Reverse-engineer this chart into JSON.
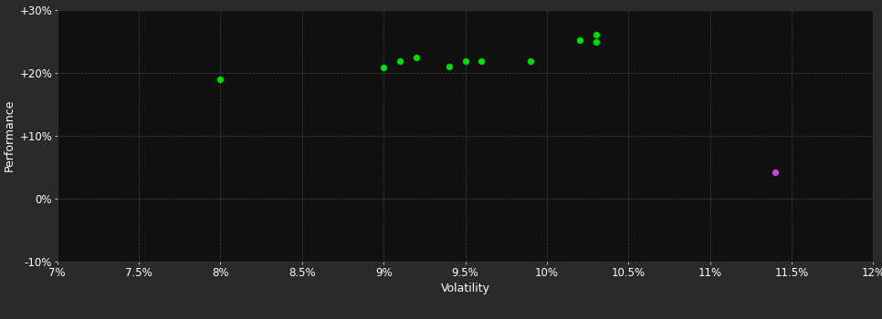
{
  "background_color": "#2a2a2a",
  "plot_bg_color": "#111111",
  "grid_color": "#444444",
  "grid_style": "--",
  "xlabel": "Volatility",
  "ylabel": "Performance",
  "xlim": [
    0.07,
    0.12
  ],
  "ylim": [
    -0.1,
    0.3
  ],
  "xticks": [
    0.07,
    0.075,
    0.08,
    0.085,
    0.09,
    0.095,
    0.1,
    0.105,
    0.11,
    0.115,
    0.12
  ],
  "yticks": [
    -0.1,
    0.0,
    0.1,
    0.2,
    0.3
  ],
  "ytick_labels": [
    "-10%",
    "0%",
    "+10%",
    "+20%",
    "+30%"
  ],
  "xtick_labels": [
    "7%",
    "7.5%",
    "8%",
    "8.5%",
    "9%",
    "9.5%",
    "10%",
    "10.5%",
    "11%",
    "11.5%",
    "12%"
  ],
  "green_points": [
    [
      0.08,
      0.19
    ],
    [
      0.09,
      0.208
    ],
    [
      0.091,
      0.218
    ],
    [
      0.092,
      0.224
    ],
    [
      0.094,
      0.21
    ],
    [
      0.095,
      0.218
    ],
    [
      0.096,
      0.218
    ],
    [
      0.099,
      0.218
    ],
    [
      0.102,
      0.252
    ],
    [
      0.103,
      0.26
    ],
    [
      0.103,
      0.248
    ]
  ],
  "magenta_points": [
    [
      0.114,
      0.042
    ]
  ],
  "green_color": "#00dd00",
  "magenta_color": "#cc44cc",
  "marker_size": 28,
  "tick_label_color": "#ffffff",
  "axis_label_color": "#ffffff",
  "tick_label_fontsize": 8.5,
  "axis_label_fontsize": 9
}
